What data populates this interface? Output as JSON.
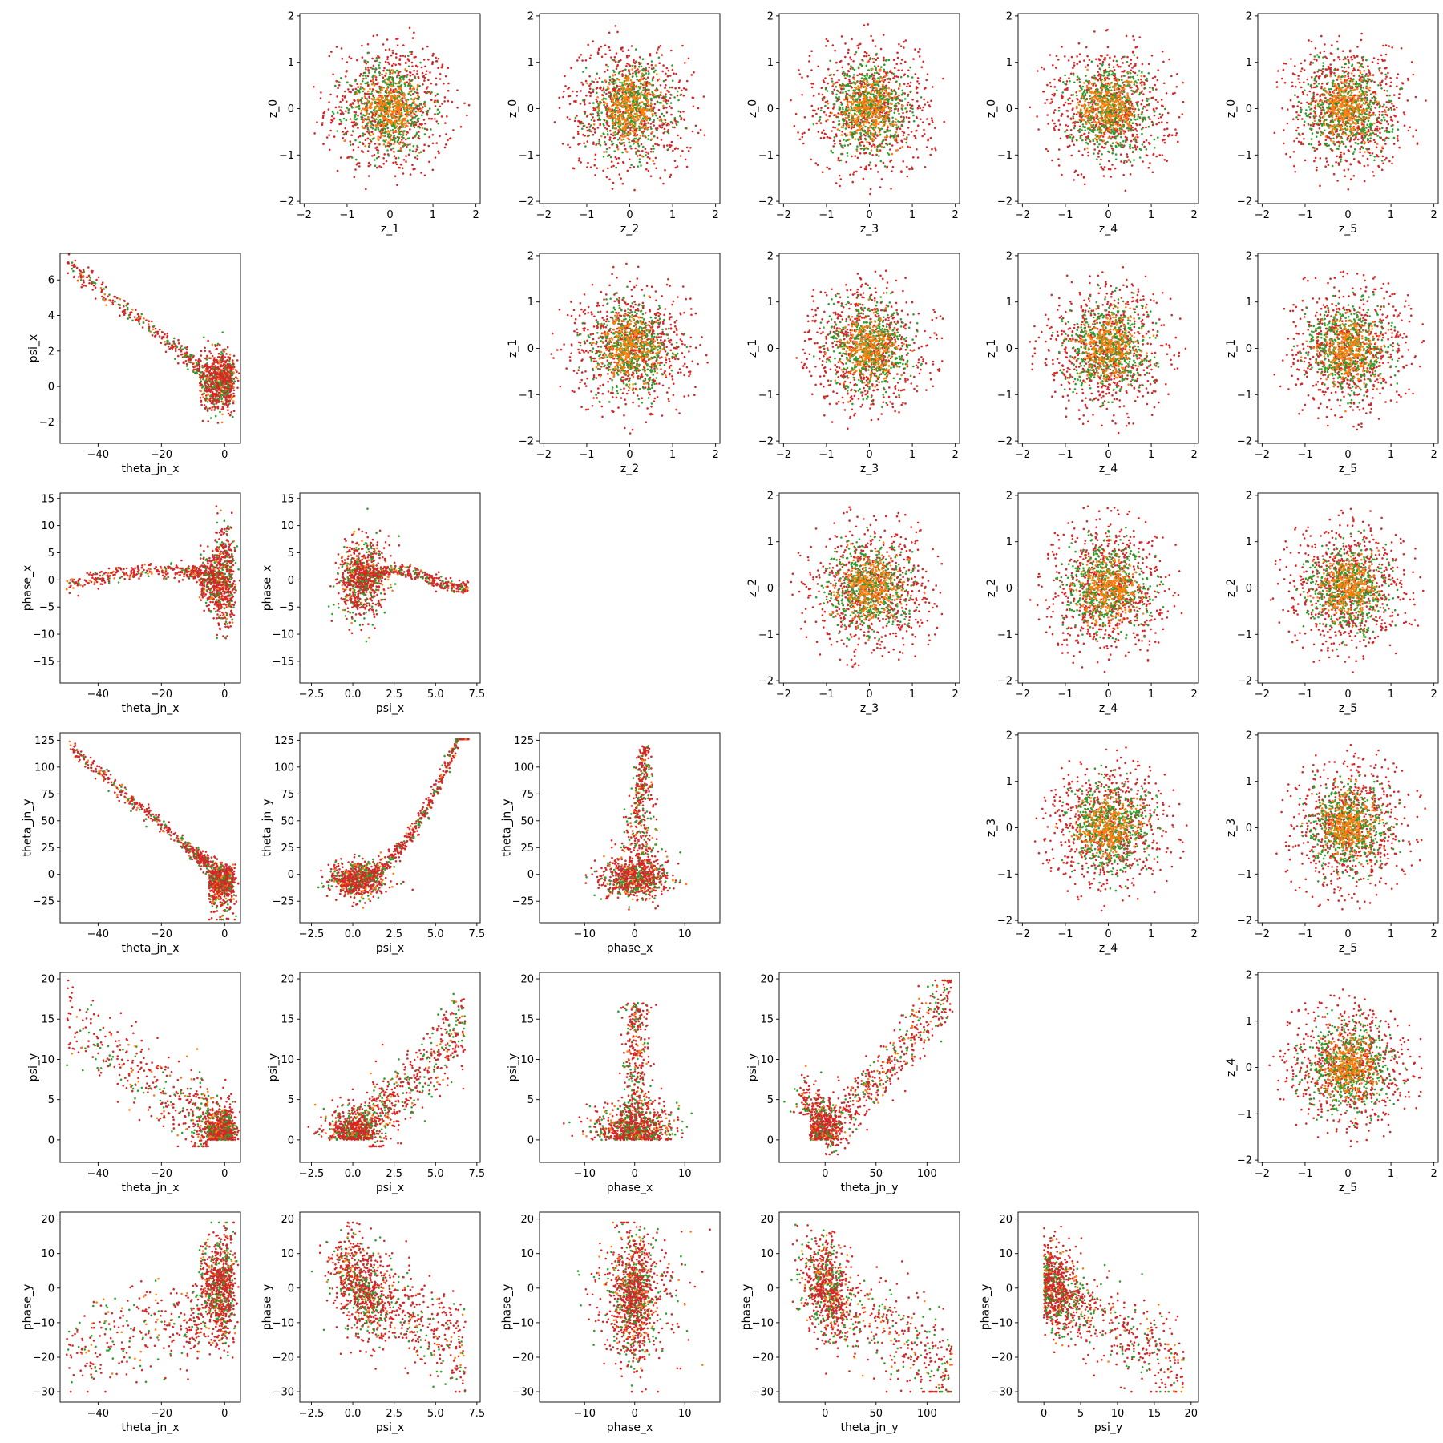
{
  "figure": {
    "colors": {
      "series_a": "#d62728",
      "series_b": "#2ca02c",
      "series_c": "#ff7f0e"
    }
  },
  "chart_data": [
    {
      "type": "scatter",
      "row": 0,
      "col": 1,
      "xlabel": "z_1",
      "ylabel": "z_0",
      "xlim": [
        -2.1,
        2.1
      ],
      "ylim": [
        -2.05,
        2.05
      ],
      "xticks": [
        "-2",
        "-1",
        "0",
        "1",
        "2"
      ],
      "xtickvals": [
        -2,
        -1,
        0,
        1,
        2
      ],
      "yticks": [
        "-2",
        "-1",
        "0",
        "1",
        "2"
      ],
      "ytickvals": [
        -2,
        -1,
        0,
        1,
        2
      ],
      "pattern": "gaussian-disk",
      "grid": false,
      "series": [
        {
          "color": "#d62728",
          "spread": "wide"
        },
        {
          "color": "#2ca02c",
          "spread": "medium"
        },
        {
          "color": "#ff7f0e",
          "spread": "narrow"
        }
      ]
    },
    {
      "type": "scatter",
      "row": 0,
      "col": 2,
      "xlabel": "z_2",
      "ylabel": "z_0",
      "xlim": [
        -2.1,
        2.1
      ],
      "ylim": [
        -2.05,
        2.05
      ],
      "xticks": [
        "-2",
        "-1",
        "0",
        "1",
        "2"
      ],
      "xtickvals": [
        -2,
        -1,
        0,
        1,
        2
      ],
      "yticks": [
        "-2",
        "-1",
        "0",
        "1",
        "2"
      ],
      "ytickvals": [
        -2,
        -1,
        0,
        1,
        2
      ],
      "pattern": "gaussian-disk",
      "grid": false
    },
    {
      "type": "scatter",
      "row": 0,
      "col": 3,
      "xlabel": "z_3",
      "ylabel": "z_0",
      "xlim": [
        -2.1,
        2.1
      ],
      "ylim": [
        -2.05,
        2.05
      ],
      "xticks": [
        "-2",
        "-1",
        "0",
        "1",
        "2"
      ],
      "xtickvals": [
        -2,
        -1,
        0,
        1,
        2
      ],
      "yticks": [
        "-2",
        "-1",
        "0",
        "1",
        "2"
      ],
      "ytickvals": [
        -2,
        -1,
        0,
        1,
        2
      ],
      "pattern": "gaussian-disk",
      "grid": false
    },
    {
      "type": "scatter",
      "row": 0,
      "col": 4,
      "xlabel": "z_4",
      "ylabel": "z_0",
      "xlim": [
        -2.1,
        2.1
      ],
      "ylim": [
        -2.05,
        2.05
      ],
      "xticks": [
        "-2",
        "-1",
        "0",
        "1",
        "2"
      ],
      "xtickvals": [
        -2,
        -1,
        0,
        1,
        2
      ],
      "yticks": [
        "-2",
        "-1",
        "0",
        "1",
        "2"
      ],
      "ytickvals": [
        -2,
        -1,
        0,
        1,
        2
      ],
      "pattern": "gaussian-disk",
      "grid": false
    },
    {
      "type": "scatter",
      "row": 0,
      "col": 5,
      "xlabel": "z_5",
      "ylabel": "z_0",
      "xlim": [
        -2.1,
        2.1
      ],
      "ylim": [
        -2.05,
        2.05
      ],
      "xticks": [
        "-2",
        "-1",
        "0",
        "1",
        "2"
      ],
      "xtickvals": [
        -2,
        -1,
        0,
        1,
        2
      ],
      "yticks": [
        "-2",
        "-1",
        "0",
        "1",
        "2"
      ],
      "ytickvals": [
        -2,
        -1,
        0,
        1,
        2
      ],
      "pattern": "gaussian-disk",
      "grid": false
    },
    {
      "type": "scatter",
      "row": 1,
      "col": 0,
      "xlabel": "theta_jn_x",
      "ylabel": "psi_x",
      "xlim": [
        -52,
        5
      ],
      "ylim": [
        -3.2,
        7.5
      ],
      "xticks": [
        "-40",
        "-20",
        "0"
      ],
      "xtickvals": [
        -40,
        -20,
        0
      ],
      "yticks": [
        "-2",
        "0",
        "2",
        "4",
        "6"
      ],
      "ytickvals": [
        -2,
        0,
        2,
        4,
        6
      ],
      "pattern": "tj-psix",
      "grid": false
    },
    {
      "type": "scatter",
      "row": 1,
      "col": 2,
      "xlabel": "z_2",
      "ylabel": "z_1",
      "xlim": [
        -2.1,
        2.1
      ],
      "ylim": [
        -2.05,
        2.05
      ],
      "xticks": [
        "-2",
        "-1",
        "0",
        "1",
        "2"
      ],
      "xtickvals": [
        -2,
        -1,
        0,
        1,
        2
      ],
      "yticks": [
        "-2",
        "-1",
        "0",
        "1",
        "2"
      ],
      "ytickvals": [
        -2,
        -1,
        0,
        1,
        2
      ],
      "pattern": "gaussian-disk",
      "grid": false
    },
    {
      "type": "scatter",
      "row": 1,
      "col": 3,
      "xlabel": "z_3",
      "ylabel": "z_1",
      "xlim": [
        -2.1,
        2.1
      ],
      "ylim": [
        -2.05,
        2.05
      ],
      "xticks": [
        "-2",
        "-1",
        "0",
        "1",
        "2"
      ],
      "xtickvals": [
        -2,
        -1,
        0,
        1,
        2
      ],
      "yticks": [
        "-2",
        "-1",
        "0",
        "1",
        "2"
      ],
      "ytickvals": [
        -2,
        -1,
        0,
        1,
        2
      ],
      "pattern": "gaussian-disk",
      "grid": false
    },
    {
      "type": "scatter",
      "row": 1,
      "col": 4,
      "xlabel": "z_4",
      "ylabel": "z_1",
      "xlim": [
        -2.1,
        2.1
      ],
      "ylim": [
        -2.05,
        2.05
      ],
      "xticks": [
        "-2",
        "-1",
        "0",
        "1",
        "2"
      ],
      "xtickvals": [
        -2,
        -1,
        0,
        1,
        2
      ],
      "yticks": [
        "-2",
        "-1",
        "0",
        "1",
        "2"
      ],
      "ytickvals": [
        -2,
        -1,
        0,
        1,
        2
      ],
      "pattern": "gaussian-disk",
      "grid": false
    },
    {
      "type": "scatter",
      "row": 1,
      "col": 5,
      "xlabel": "z_5",
      "ylabel": "z_1",
      "xlim": [
        -2.1,
        2.1
      ],
      "ylim": [
        -2.05,
        2.05
      ],
      "xticks": [
        "-2",
        "-1",
        "0",
        "1",
        "2"
      ],
      "xtickvals": [
        -2,
        -1,
        0,
        1,
        2
      ],
      "yticks": [
        "-2",
        "-1",
        "0",
        "1",
        "2"
      ],
      "ytickvals": [
        -2,
        -1,
        0,
        1,
        2
      ],
      "pattern": "gaussian-disk",
      "grid": false
    },
    {
      "type": "scatter",
      "row": 2,
      "col": 0,
      "xlabel": "theta_jn_x",
      "ylabel": "phase_x",
      "xlim": [
        -52,
        5
      ],
      "ylim": [
        -19,
        16
      ],
      "xticks": [
        "-40",
        "-20",
        "0"
      ],
      "xtickvals": [
        -40,
        -20,
        0
      ],
      "yticks": [
        "-15",
        "-10",
        "-5",
        "0",
        "5",
        "10",
        "15"
      ],
      "ytickvals": [
        -15,
        -10,
        -5,
        0,
        5,
        10,
        15
      ],
      "pattern": "tj-phasex",
      "grid": false
    },
    {
      "type": "scatter",
      "row": 2,
      "col": 1,
      "xlabel": "psi_x",
      "ylabel": "phase_x",
      "xlim": [
        -3.2,
        7.7
      ],
      "ylim": [
        -19,
        16
      ],
      "xticks": [
        "-2.5",
        "0.0",
        "2.5",
        "5.0",
        "7.5"
      ],
      "xtickvals": [
        -2.5,
        0,
        2.5,
        5,
        7.5
      ],
      "yticks": [
        "-15",
        "-10",
        "-5",
        "0",
        "5",
        "10",
        "15"
      ],
      "ytickvals": [
        -15,
        -10,
        -5,
        0,
        5,
        10,
        15
      ],
      "pattern": "psix-phasex",
      "grid": false
    },
    {
      "type": "scatter",
      "row": 2,
      "col": 3,
      "xlabel": "z_3",
      "ylabel": "z_2",
      "xlim": [
        -2.1,
        2.1
      ],
      "ylim": [
        -2.05,
        2.05
      ],
      "xticks": [
        "-2",
        "-1",
        "0",
        "1",
        "2"
      ],
      "xtickvals": [
        -2,
        -1,
        0,
        1,
        2
      ],
      "yticks": [
        "-2",
        "-1",
        "0",
        "1",
        "2"
      ],
      "ytickvals": [
        -2,
        -1,
        0,
        1,
        2
      ],
      "pattern": "gaussian-disk",
      "grid": false
    },
    {
      "type": "scatter",
      "row": 2,
      "col": 4,
      "xlabel": "z_4",
      "ylabel": "z_2",
      "xlim": [
        -2.1,
        2.1
      ],
      "ylim": [
        -2.05,
        2.05
      ],
      "xticks": [
        "-2",
        "-1",
        "0",
        "1",
        "2"
      ],
      "xtickvals": [
        -2,
        -1,
        0,
        1,
        2
      ],
      "yticks": [
        "-2",
        "-1",
        "0",
        "1",
        "2"
      ],
      "ytickvals": [
        -2,
        -1,
        0,
        1,
        2
      ],
      "pattern": "gaussian-disk",
      "grid": false
    },
    {
      "type": "scatter",
      "row": 2,
      "col": 5,
      "xlabel": "z_5",
      "ylabel": "z_2",
      "xlim": [
        -2.1,
        2.1
      ],
      "ylim": [
        -2.05,
        2.05
      ],
      "xticks": [
        "-2",
        "-1",
        "0",
        "1",
        "2"
      ],
      "xtickvals": [
        -2,
        -1,
        0,
        1,
        2
      ],
      "yticks": [
        "-2",
        "-1",
        "0",
        "1",
        "2"
      ],
      "ytickvals": [
        -2,
        -1,
        0,
        1,
        2
      ],
      "pattern": "gaussian-disk",
      "grid": false
    },
    {
      "type": "scatter",
      "row": 3,
      "col": 0,
      "xlabel": "theta_jn_x",
      "ylabel": "theta_jn_y",
      "xlim": [
        -52,
        5
      ],
      "ylim": [
        -45,
        132
      ],
      "xticks": [
        "-40",
        "-20",
        "0"
      ],
      "xtickvals": [
        -40,
        -20,
        0
      ],
      "yticks": [
        "-25",
        "0",
        "25",
        "50",
        "75",
        "100",
        "125"
      ],
      "ytickvals": [
        -25,
        0,
        25,
        50,
        75,
        100,
        125
      ],
      "pattern": "tjx-tjy",
      "grid": false
    },
    {
      "type": "scatter",
      "row": 3,
      "col": 1,
      "xlabel": "psi_x",
      "ylabel": "theta_jn_y",
      "xlim": [
        -3.2,
        7.7
      ],
      "ylim": [
        -45,
        132
      ],
      "xticks": [
        "-2.5",
        "0.0",
        "2.5",
        "5.0",
        "7.5"
      ],
      "xtickvals": [
        -2.5,
        0,
        2.5,
        5,
        7.5
      ],
      "yticks": [
        "-25",
        "0",
        "25",
        "50",
        "75",
        "100",
        "125"
      ],
      "ytickvals": [
        -25,
        0,
        25,
        50,
        75,
        100,
        125
      ],
      "pattern": "psix-tjy",
      "grid": false
    },
    {
      "type": "scatter",
      "row": 3,
      "col": 2,
      "xlabel": "phase_x",
      "ylabel": "theta_jn_y",
      "xlim": [
        -19,
        17
      ],
      "ylim": [
        -45,
        132
      ],
      "xticks": [
        "-10",
        "0",
        "10"
      ],
      "xtickvals": [
        -10,
        0,
        10
      ],
      "yticks": [
        "-25",
        "0",
        "25",
        "50",
        "75",
        "100",
        "125"
      ],
      "ytickvals": [
        -25,
        0,
        25,
        50,
        75,
        100,
        125
      ],
      "pattern": "phasex-tjy",
      "grid": false
    },
    {
      "type": "scatter",
      "row": 3,
      "col": 4,
      "xlabel": "z_4",
      "ylabel": "z_3",
      "xlim": [
        -2.1,
        2.1
      ],
      "ylim": [
        -2.05,
        2.05
      ],
      "xticks": [
        "-2",
        "-1",
        "0",
        "1",
        "2"
      ],
      "xtickvals": [
        -2,
        -1,
        0,
        1,
        2
      ],
      "yticks": [
        "-2",
        "-1",
        "0",
        "1",
        "2"
      ],
      "ytickvals": [
        -2,
        -1,
        0,
        1,
        2
      ],
      "pattern": "gaussian-disk",
      "grid": false
    },
    {
      "type": "scatter",
      "row": 3,
      "col": 5,
      "xlabel": "z_5",
      "ylabel": "z_3",
      "xlim": [
        -2.1,
        2.1
      ],
      "ylim": [
        -2.05,
        2.05
      ],
      "xticks": [
        "-2",
        "-1",
        "0",
        "1",
        "2"
      ],
      "xtickvals": [
        -2,
        -1,
        0,
        1,
        2
      ],
      "yticks": [
        "-2",
        "-1",
        "0",
        "1",
        "2"
      ],
      "ytickvals": [
        -2,
        -1,
        0,
        1,
        2
      ],
      "pattern": "gaussian-disk",
      "grid": false
    },
    {
      "type": "scatter",
      "row": 4,
      "col": 0,
      "xlabel": "theta_jn_x",
      "ylabel": "psi_y",
      "xlim": [
        -52,
        5
      ],
      "ylim": [
        -2.8,
        20.8
      ],
      "xticks": [
        "-40",
        "-20",
        "0"
      ],
      "xtickvals": [
        -40,
        -20,
        0
      ],
      "yticks": [
        "0",
        "5",
        "10",
        "15",
        "20"
      ],
      "ytickvals": [
        0,
        5,
        10,
        15,
        20
      ],
      "pattern": "tjx-psiy",
      "grid": false
    },
    {
      "type": "scatter",
      "row": 4,
      "col": 1,
      "xlabel": "psi_x",
      "ylabel": "psi_y",
      "xlim": [
        -3.2,
        7.7
      ],
      "ylim": [
        -2.8,
        20.8
      ],
      "xticks": [
        "-2.5",
        "0.0",
        "2.5",
        "5.0",
        "7.5"
      ],
      "xtickvals": [
        -2.5,
        0,
        2.5,
        5,
        7.5
      ],
      "yticks": [
        "0",
        "5",
        "10",
        "15",
        "20"
      ],
      "ytickvals": [
        0,
        5,
        10,
        15,
        20
      ],
      "pattern": "psix-psiy",
      "grid": false
    },
    {
      "type": "scatter",
      "row": 4,
      "col": 2,
      "xlabel": "phase_x",
      "ylabel": "psi_y",
      "xlim": [
        -19,
        17
      ],
      "ylim": [
        -2.8,
        20.8
      ],
      "xticks": [
        "-10",
        "0",
        "10"
      ],
      "xtickvals": [
        -10,
        0,
        10
      ],
      "yticks": [
        "0",
        "5",
        "10",
        "15",
        "20"
      ],
      "ytickvals": [
        0,
        5,
        10,
        15,
        20
      ],
      "pattern": "phasex-psiy",
      "grid": false
    },
    {
      "type": "scatter",
      "row": 4,
      "col": 3,
      "xlabel": "theta_jn_y",
      "ylabel": "psi_y",
      "xlim": [
        -45,
        132
      ],
      "ylim": [
        -2.8,
        20.8
      ],
      "xticks": [
        "0",
        "50",
        "100"
      ],
      "xtickvals": [
        0,
        50,
        100
      ],
      "yticks": [
        "0",
        "5",
        "10",
        "15",
        "20"
      ],
      "ytickvals": [
        0,
        5,
        10,
        15,
        20
      ],
      "pattern": "tjy-psiy",
      "grid": false
    },
    {
      "type": "scatter",
      "row": 4,
      "col": 5,
      "xlabel": "z_5",
      "ylabel": "z_4",
      "xlim": [
        -2.1,
        2.1
      ],
      "ylim": [
        -2.05,
        2.05
      ],
      "xticks": [
        "-2",
        "-1",
        "0",
        "1",
        "2"
      ],
      "xtickvals": [
        -2,
        -1,
        0,
        1,
        2
      ],
      "yticks": [
        "-2",
        "-1",
        "0",
        "1",
        "2"
      ],
      "ytickvals": [
        -2,
        -1,
        0,
        1,
        2
      ],
      "pattern": "gaussian-disk",
      "grid": false
    },
    {
      "type": "scatter",
      "row": 5,
      "col": 0,
      "xlabel": "theta_jn_x",
      "ylabel": "phase_y",
      "xlim": [
        -52,
        5
      ],
      "ylim": [
        -33,
        22
      ],
      "xticks": [
        "-40",
        "-20",
        "0"
      ],
      "xtickvals": [
        -40,
        -20,
        0
      ],
      "yticks": [
        "-30",
        "-20",
        "-10",
        "0",
        "10",
        "20"
      ],
      "ytickvals": [
        -30,
        -20,
        -10,
        0,
        10,
        20
      ],
      "pattern": "tjx-phasey",
      "grid": false
    },
    {
      "type": "scatter",
      "row": 5,
      "col": 1,
      "xlabel": "psi_x",
      "ylabel": "phase_y",
      "xlim": [
        -3.2,
        7.7
      ],
      "ylim": [
        -33,
        22
      ],
      "xticks": [
        "-2.5",
        "0.0",
        "2.5",
        "5.0",
        "7.5"
      ],
      "xtickvals": [
        -2.5,
        0,
        2.5,
        5,
        7.5
      ],
      "yticks": [
        "-30",
        "-20",
        "-10",
        "0",
        "10",
        "20"
      ],
      "ytickvals": [
        -30,
        -20,
        -10,
        0,
        10,
        20
      ],
      "pattern": "psix-phasey",
      "grid": false
    },
    {
      "type": "scatter",
      "row": 5,
      "col": 2,
      "xlabel": "phase_x",
      "ylabel": "phase_y",
      "xlim": [
        -19,
        17
      ],
      "ylim": [
        -33,
        22
      ],
      "xticks": [
        "-10",
        "0",
        "10"
      ],
      "xtickvals": [
        -10,
        0,
        10
      ],
      "yticks": [
        "-30",
        "-20",
        "-10",
        "0",
        "10",
        "20"
      ],
      "ytickvals": [
        -30,
        -20,
        -10,
        0,
        10,
        20
      ],
      "pattern": "phasex-phasey",
      "grid": false
    },
    {
      "type": "scatter",
      "row": 5,
      "col": 3,
      "xlabel": "theta_jn_y",
      "ylabel": "phase_y",
      "xlim": [
        -45,
        132
      ],
      "ylim": [
        -33,
        22
      ],
      "xticks": [
        "0",
        "50",
        "100"
      ],
      "xtickvals": [
        0,
        50,
        100
      ],
      "yticks": [
        "-30",
        "-20",
        "-10",
        "0",
        "10",
        "20"
      ],
      "ytickvals": [
        -30,
        -20,
        -10,
        0,
        10,
        20
      ],
      "pattern": "tjy-phasey",
      "grid": false
    },
    {
      "type": "scatter",
      "row": 5,
      "col": 4,
      "xlabel": "psi_y",
      "ylabel": "phase_y",
      "xlim": [
        -3.5,
        21
      ],
      "ylim": [
        -33,
        22
      ],
      "xticks": [
        "0",
        "5",
        "10",
        "15",
        "20"
      ],
      "xtickvals": [
        0,
        5,
        10,
        15,
        20
      ],
      "yticks": [
        "-30",
        "-20",
        "-10",
        "0",
        "10",
        "20"
      ],
      "ytickvals": [
        -30,
        -20,
        -10,
        0,
        10,
        20
      ],
      "pattern": "psiy-phasey",
      "grid": false
    }
  ]
}
